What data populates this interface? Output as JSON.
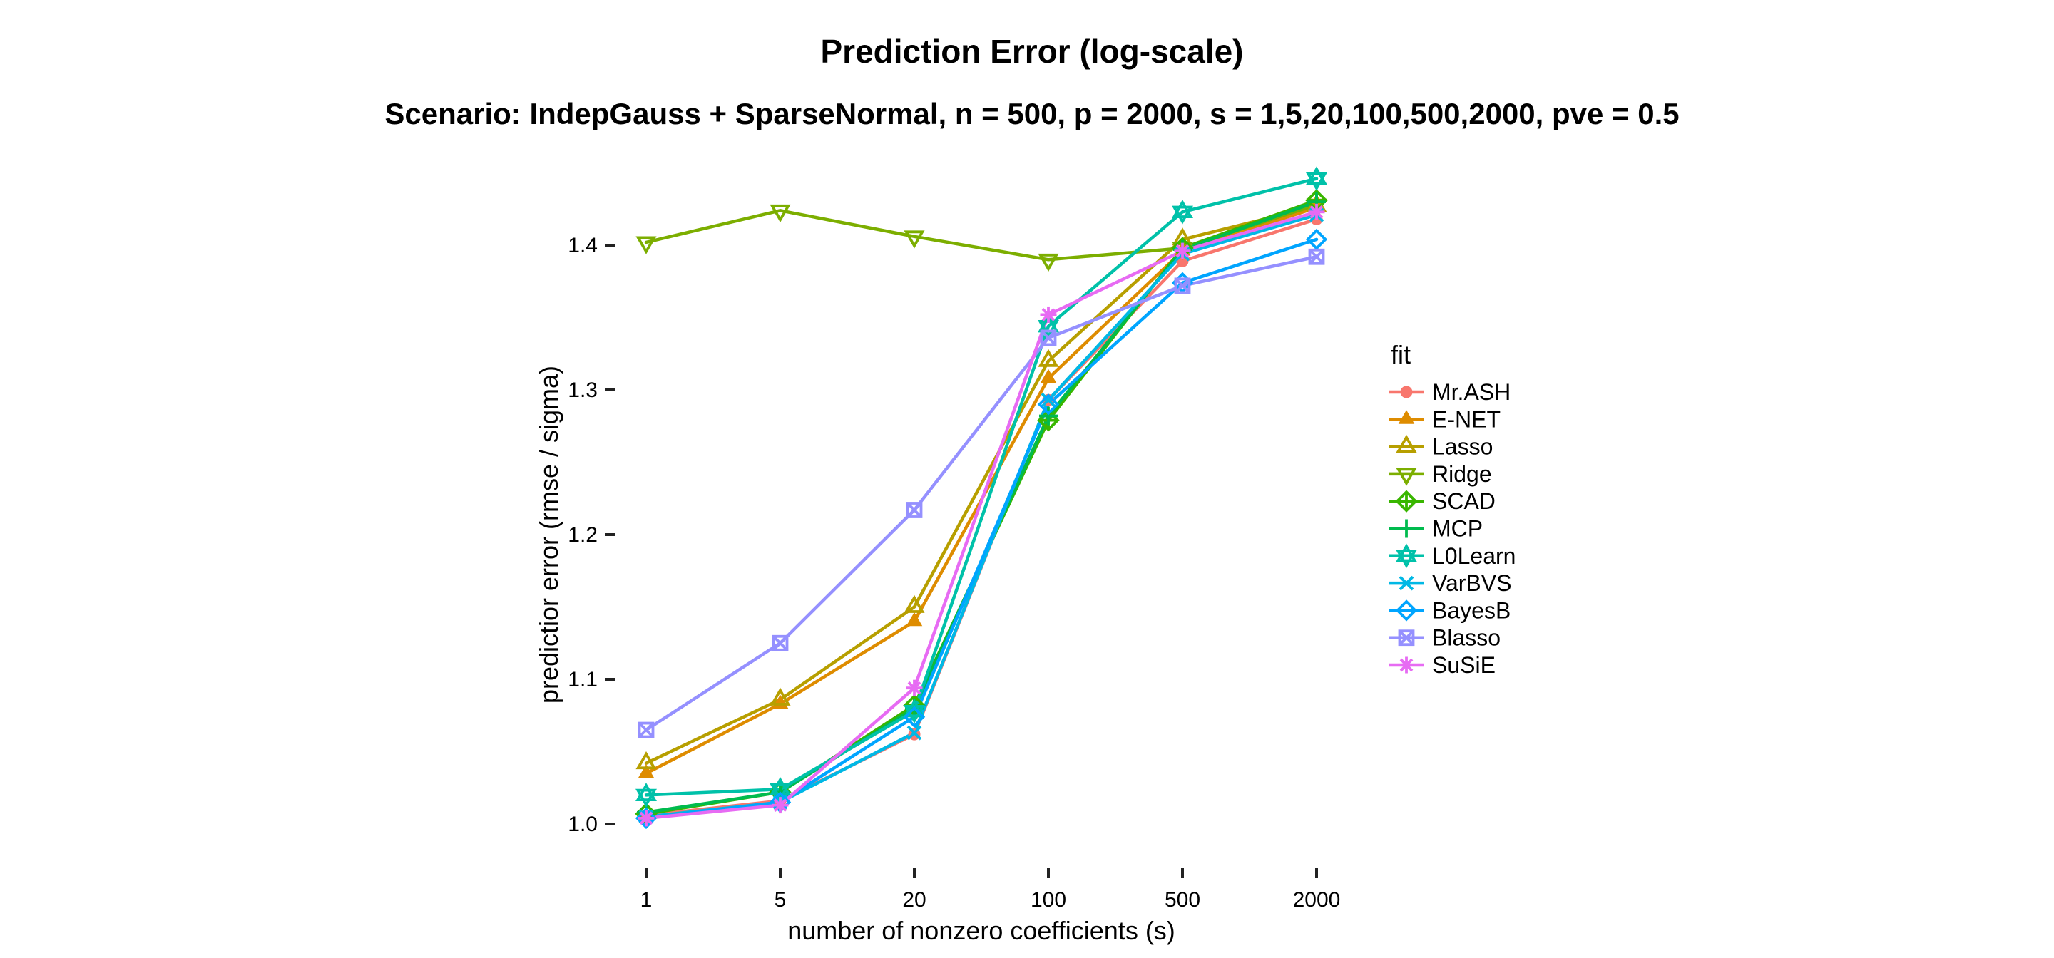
{
  "page": {
    "background": "#FFFFFF"
  },
  "chart_data": {
    "type": "line",
    "title": "Prediction Error (log-scale)",
    "subtitle": "Scenario: IndepGauss + SparseNormal, n = 500, p = 2000, s = 1,5,20,100,500,2000, pve = 0.5",
    "xlabel": "number of nonzero coefficients (s)",
    "ylabel": "predictior error (rmse / sigma)",
    "legend_title": "fit",
    "legend_position": "right",
    "grid": false,
    "x_scale": "discrete, equally spaced categories",
    "categories": [
      "1",
      "5",
      "20",
      "100",
      "500",
      "2000"
    ],
    "y_ticks": [
      1.0,
      1.1,
      1.2,
      1.3,
      1.4
    ],
    "ylim": [
      0.995,
      1.455
    ],
    "series": [
      {
        "name": "Mr.ASH",
        "color": "#F8766D",
        "shape": "circle-filled",
        "values": [
          1.006,
          1.016,
          1.062,
          1.293,
          1.389,
          1.418
        ]
      },
      {
        "name": "E-NET",
        "color": "#DE8C00",
        "shape": "triangle-filled",
        "values": [
          1.035,
          1.083,
          1.14,
          1.308,
          1.396,
          1.426
        ]
      },
      {
        "name": "Lasso",
        "color": "#B79F00",
        "shape": "triangle-open",
        "values": [
          1.042,
          1.086,
          1.15,
          1.32,
          1.404,
          1.427
        ]
      },
      {
        "name": "Ridge",
        "color": "#7CAE00",
        "shape": "triangle-down-open",
        "values": [
          1.402,
          1.424,
          1.406,
          1.39,
          1.398,
          1.428
        ]
      },
      {
        "name": "SCAD",
        "color": "#39B600",
        "shape": "diamond-plus",
        "values": [
          1.007,
          1.022,
          1.082,
          1.279,
          1.398,
          1.431
        ]
      },
      {
        "name": "MCP",
        "color": "#00BB4E",
        "shape": "plus",
        "values": [
          1.008,
          1.022,
          1.08,
          1.282,
          1.397,
          1.43
        ]
      },
      {
        "name": "L0Learn",
        "color": "#00C1A9",
        "shape": "star-of-david",
        "values": [
          1.02,
          1.024,
          1.078,
          1.344,
          1.423,
          1.446
        ]
      },
      {
        "name": "VarBVS",
        "color": "#00B8E5",
        "shape": "x",
        "values": [
          1.005,
          1.015,
          1.063,
          1.293,
          1.394,
          1.421
        ]
      },
      {
        "name": "BayesB",
        "color": "#00A5FF",
        "shape": "diamond-open",
        "values": [
          1.004,
          1.015,
          1.074,
          1.29,
          1.374,
          1.404
        ]
      },
      {
        "name": "Blasso",
        "color": "#9590FF",
        "shape": "square-x",
        "values": [
          1.065,
          1.125,
          1.217,
          1.336,
          1.372,
          1.392
        ]
      },
      {
        "name": "SuSiE",
        "color": "#E76BF3",
        "shape": "asterisk",
        "values": [
          1.004,
          1.013,
          1.094,
          1.352,
          1.396,
          1.423
        ]
      }
    ]
  }
}
